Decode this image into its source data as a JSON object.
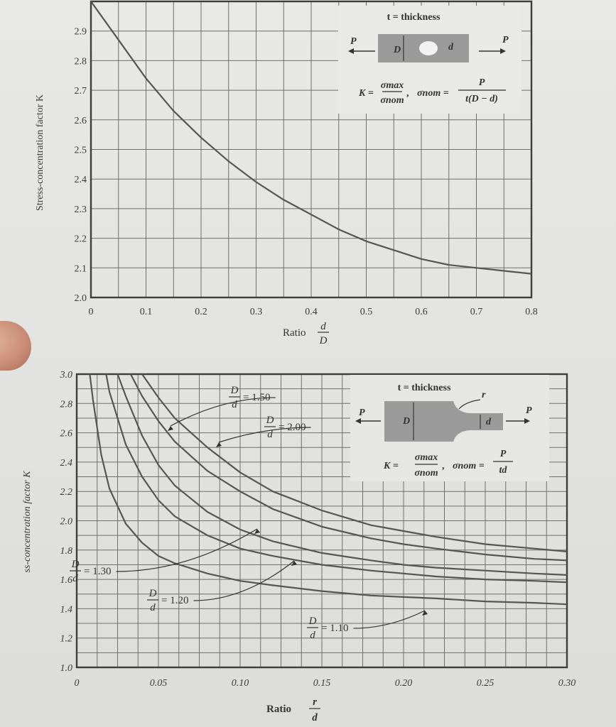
{
  "chart_data": [
    {
      "type": "line",
      "xlabel": "Ratio d/D",
      "ylabel": "Stress-concentration factor K",
      "xlim": [
        0,
        0.8
      ],
      "ylim": [
        2.0,
        3.0
      ],
      "x_ticks": [
        "0",
        "0.1",
        "0.2",
        "0.3",
        "0.4",
        "0.5",
        "0.6",
        "0.7",
        "0.8"
      ],
      "y_ticks": [
        "2.0",
        "2.1",
        "2.2",
        "2.3",
        "2.4",
        "2.5",
        "2.6",
        "2.7",
        "2.8",
        "2.9"
      ],
      "grid": true,
      "series": [
        {
          "x": [
            0.0,
            0.05,
            0.1,
            0.15,
            0.2,
            0.25,
            0.3,
            0.35,
            0.4,
            0.45,
            0.5,
            0.55,
            0.6,
            0.65,
            0.7,
            0.75,
            0.8
          ],
          "y": [
            3.0,
            2.87,
            2.74,
            2.63,
            2.54,
            2.46,
            2.39,
            2.33,
            2.28,
            2.23,
            2.19,
            2.16,
            2.13,
            2.11,
            2.1,
            2.09,
            2.08
          ]
        }
      ],
      "inset": {
        "thickness_label": "t = thickness",
        "load_left": "P",
        "load_right": "P",
        "dim_D": "D",
        "dim_d": "d",
        "formula": "K = σmax/σnom , σnom = P/(t(D−d))"
      }
    },
    {
      "type": "line",
      "xlabel": "Ratio r/d",
      "ylabel": "Stress-concentration factor K",
      "xlim": [
        0,
        0.3
      ],
      "ylim": [
        1.0,
        3.0
      ],
      "x_ticks": [
        "0",
        "0.05",
        "0.10",
        "0.15",
        "0.20",
        "0.25",
        "0.30"
      ],
      "y_ticks": [
        "1.0",
        "1.2",
        "1.4",
        "1.6",
        "1.8",
        "2.0",
        "2.2",
        "2.4",
        "2.6",
        "2.8",
        "3.0"
      ],
      "grid": true,
      "series": [
        {
          "name": "D/d = 2.00",
          "x": [
            0.04,
            0.05,
            0.06,
            0.08,
            0.1,
            0.12,
            0.15,
            0.18,
            0.2,
            0.22,
            0.25,
            0.28,
            0.3
          ],
          "y": [
            3.0,
            2.84,
            2.7,
            2.5,
            2.33,
            2.2,
            2.07,
            1.97,
            1.93,
            1.89,
            1.84,
            1.81,
            1.79
          ]
        },
        {
          "name": "D/d = 1.50",
          "x": [
            0.033,
            0.04,
            0.05,
            0.06,
            0.08,
            0.1,
            0.12,
            0.15,
            0.18,
            0.2,
            0.22,
            0.25,
            0.28,
            0.3
          ],
          "y": [
            3.0,
            2.85,
            2.68,
            2.54,
            2.34,
            2.2,
            2.08,
            1.96,
            1.88,
            1.84,
            1.81,
            1.77,
            1.74,
            1.73
          ]
        },
        {
          "name": "D/d = 1.30",
          "x": [
            0.025,
            0.03,
            0.04,
            0.05,
            0.06,
            0.08,
            0.1,
            0.12,
            0.15,
            0.18,
            0.2,
            0.22,
            0.25,
            0.28,
            0.3
          ],
          "y": [
            3.0,
            2.85,
            2.58,
            2.38,
            2.24,
            2.06,
            1.94,
            1.86,
            1.78,
            1.73,
            1.7,
            1.68,
            1.66,
            1.64,
            1.63
          ]
        },
        {
          "name": "D/d = 1.20",
          "x": [
            0.018,
            0.02,
            0.03,
            0.04,
            0.05,
            0.06,
            0.08,
            0.1,
            0.12,
            0.15,
            0.18,
            0.2,
            0.22,
            0.25,
            0.28,
            0.3
          ],
          "y": [
            3.0,
            2.88,
            2.52,
            2.3,
            2.14,
            2.03,
            1.9,
            1.81,
            1.76,
            1.7,
            1.66,
            1.64,
            1.62,
            1.6,
            1.59,
            1.58
          ]
        },
        {
          "name": "D/d = 1.10",
          "x": [
            0.008,
            0.01,
            0.015,
            0.02,
            0.03,
            0.04,
            0.05,
            0.06,
            0.08,
            0.1,
            0.12,
            0.15,
            0.18,
            0.2,
            0.22,
            0.25,
            0.28,
            0.3
          ],
          "y": [
            3.0,
            2.82,
            2.45,
            2.22,
            1.98,
            1.85,
            1.76,
            1.71,
            1.64,
            1.59,
            1.56,
            1.52,
            1.49,
            1.48,
            1.47,
            1.45,
            1.44,
            1.43
          ]
        }
      ],
      "curve_labels": {
        "d150": {
          "num": "D",
          "den": "d",
          "value": "= 1.50"
        },
        "d200": {
          "num": "D",
          "den": "d",
          "value": "= 2.00"
        },
        "d130": {
          "num": "D",
          "den": "d",
          "value": "= 1.30"
        },
        "d120": {
          "num": "D",
          "den": "d",
          "value": "= 1.20"
        },
        "d110": {
          "num": "D",
          "den": "d",
          "value": "= 1.10"
        }
      },
      "inset": {
        "thickness_label": "t = thickness",
        "fillet_label": "r",
        "load_left": "P",
        "load_right": "P",
        "dim_D": "D",
        "dim_d": "d",
        "formula": "K = σmax/σnom , σnom = P/(td)"
      }
    }
  ],
  "labels": {
    "top_ylabel": "Stress-concentration factor K",
    "top_xlabel_text": "Ratio",
    "top_xlabel_num": "d",
    "top_xlabel_den": "D",
    "bottom_ylabel": "ss-concentration factor K",
    "bottom_xlabel_text": "Ratio",
    "bottom_xlabel_num": "r",
    "bottom_xlabel_den": "d"
  },
  "insets": {
    "top": {
      "thickness": "t = thickness",
      "P_left": "P",
      "P_right": "P",
      "D": "D",
      "d": "d",
      "K_eq": "K =",
      "sig_max": "σmax",
      "sig_nom": "σnom",
      "sep": ",",
      "sig_nom2": "σnom =",
      "P": "P",
      "den": "t(D − d)"
    },
    "bottom": {
      "thickness": "t = thickness",
      "r": "r",
      "P_left": "P",
      "P_right": "P",
      "D": "D",
      "d": "d",
      "K_eq": "K =",
      "sig_max": "σmax",
      "sig_nom": "σnom",
      "sep": ",",
      "sig_nom2": "σnom =",
      "P": "P",
      "den": "td"
    }
  },
  "colors": {
    "paper": "#e6e6e4",
    "grid": "#6f6f6f",
    "curve": "#555555",
    "inset_bar": "#9a9a9a"
  }
}
